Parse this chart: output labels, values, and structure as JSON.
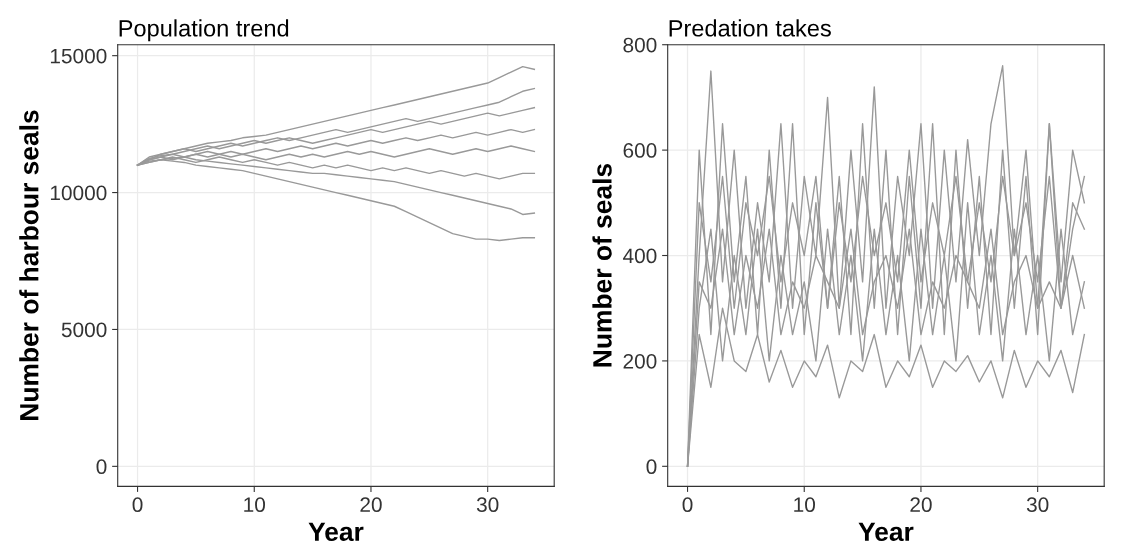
{
  "chart_data": [
    {
      "type": "line",
      "title": "Population trend",
      "xlabel": "Year",
      "ylabel": "Number of harbour seals",
      "xlim": [
        -1.7,
        35.7
      ],
      "ylim": [
        -730,
        15400
      ],
      "xticks": [
        0,
        10,
        20,
        30
      ],
      "yticks": [
        0,
        5000,
        10000,
        15000
      ],
      "grid": true,
      "x": [
        0,
        1,
        2,
        3,
        4,
        5,
        6,
        7,
        8,
        9,
        10,
        11,
        12,
        13,
        14,
        15,
        16,
        17,
        18,
        19,
        20,
        21,
        22,
        23,
        24,
        25,
        26,
        27,
        28,
        29,
        30,
        31,
        32,
        33,
        34
      ],
      "series": [
        {
          "color": "#999999",
          "values": [
            11000,
            11200,
            11400,
            11500,
            11600,
            11700,
            11800,
            11850,
            11900,
            12000,
            12050,
            12100,
            12200,
            12300,
            12400,
            12500,
            12600,
            12700,
            12800,
            12900,
            13000,
            13100,
            13200,
            13300,
            13400,
            13500,
            13600,
            13700,
            13800,
            13900,
            14000,
            14200,
            14400,
            14600,
            14500
          ]
        },
        {
          "color": "#999999",
          "values": [
            11000,
            11100,
            11200,
            11150,
            11100,
            11000,
            10950,
            10900,
            10850,
            10800,
            10700,
            10600,
            10500,
            10400,
            10300,
            10200,
            10100,
            10000,
            9900,
            9800,
            9700,
            9600,
            9500,
            9300,
            9100,
            8900,
            8700,
            8500,
            8400,
            8300,
            8300,
            8250,
            8300,
            8350,
            8350
          ]
        },
        {
          "color": "#999999",
          "values": [
            11000,
            11150,
            11200,
            11250,
            11300,
            11200,
            11150,
            11100,
            11050,
            11000,
            10950,
            10900,
            10850,
            10800,
            10750,
            10700,
            10700,
            10650,
            10600,
            10550,
            10500,
            10450,
            10400,
            10300,
            10200,
            10100,
            10000,
            9900,
            9800,
            9700,
            9600,
            9500,
            9400,
            9200,
            9250
          ]
        },
        {
          "color": "#999999",
          "values": [
            11000,
            11300,
            11400,
            11500,
            11600,
            11500,
            11600,
            11700,
            11800,
            11700,
            11800,
            11900,
            12000,
            11900,
            12000,
            12100,
            12200,
            12300,
            12200,
            12300,
            12400,
            12500,
            12600,
            12700,
            12600,
            12700,
            12800,
            12900,
            13000,
            13100,
            13200,
            13300,
            13500,
            13700,
            13800
          ]
        },
        {
          "color": "#999999",
          "values": [
            11000,
            11200,
            11300,
            11200,
            11300,
            11400,
            11300,
            11400,
            11500,
            11400,
            11500,
            11600,
            11500,
            11600,
            11700,
            11600,
            11700,
            11800,
            11700,
            11800,
            11900,
            11800,
            11900,
            12000,
            11900,
            12000,
            12100,
            12000,
            12100,
            12200,
            12100,
            12200,
            12300,
            12200,
            12300
          ]
        },
        {
          "color": "#999999",
          "values": [
            11000,
            11100,
            11200,
            11300,
            11200,
            11100,
            11200,
            11300,
            11200,
            11100,
            11200,
            11100,
            11000,
            11100,
            11000,
            10900,
            11000,
            10900,
            11000,
            10900,
            10800,
            10900,
            10800,
            10900,
            10800,
            10700,
            10800,
            10700,
            10600,
            10700,
            10600,
            10500,
            10600,
            10700,
            10700
          ]
        },
        {
          "color": "#999999",
          "values": [
            11000,
            11250,
            11350,
            11400,
            11500,
            11600,
            11700,
            11600,
            11700,
            11800,
            11900,
            11800,
            11900,
            12000,
            11900,
            11800,
            11900,
            12000,
            12100,
            12200,
            12300,
            12200,
            12300,
            12400,
            12500,
            12600,
            12500,
            12600,
            12700,
            12800,
            12900,
            12800,
            12900,
            13000,
            13100
          ]
        },
        {
          "color": "#999999",
          "values": [
            11000,
            11200,
            11300,
            11400,
            11300,
            11400,
            11500,
            11400,
            11300,
            11400,
            11300,
            11200,
            11300,
            11400,
            11300,
            11400,
            11300,
            11400,
            11500,
            11400,
            11500,
            11400,
            11300,
            11400,
            11500,
            11600,
            11500,
            11400,
            11500,
            11600,
            11500,
            11600,
            11700,
            11600,
            11500
          ]
        }
      ]
    },
    {
      "type": "line",
      "title": "Predation takes",
      "xlabel": "Year",
      "ylabel": "Number of seals",
      "xlim": [
        -1.7,
        35.7
      ],
      "ylim": [
        -38,
        800
      ],
      "xticks": [
        0,
        10,
        20,
        30
      ],
      "yticks": [
        0,
        200,
        400,
        600,
        800
      ],
      "grid": true,
      "x": [
        0,
        1,
        2,
        3,
        4,
        5,
        6,
        7,
        8,
        9,
        10,
        11,
        12,
        13,
        14,
        15,
        16,
        17,
        18,
        19,
        20,
        21,
        22,
        23,
        24,
        25,
        26,
        27,
        28,
        29,
        30,
        31,
        32,
        33,
        34
      ],
      "series": [
        {
          "color": "#999999",
          "values": [
            0,
            400,
            750,
            350,
            600,
            300,
            500,
            350,
            650,
            300,
            550,
            400,
            700,
            300,
            600,
            350,
            720,
            300,
            550,
            400,
            650,
            300,
            600,
            350,
            620,
            400,
            650,
            760,
            400,
            600,
            300,
            650,
            350,
            600,
            500
          ]
        },
        {
          "color": "#999999",
          "values": [
            0,
            250,
            150,
            300,
            200,
            180,
            250,
            160,
            220,
            150,
            200,
            170,
            230,
            130,
            200,
            180,
            250,
            150,
            200,
            170,
            230,
            150,
            200,
            180,
            210,
            160,
            200,
            130,
            220,
            150,
            200,
            170,
            220,
            140,
            250
          ]
        },
        {
          "color": "#999999",
          "values": [
            0,
            350,
            300,
            450,
            250,
            400,
            300,
            450,
            250,
            350,
            300,
            400,
            350,
            300,
            450,
            250,
            350,
            400,
            300,
            450,
            250,
            350,
            300,
            400,
            350,
            300,
            450,
            250,
            350,
            400,
            300,
            350,
            300,
            400,
            300
          ]
        },
        {
          "color": "#999999",
          "values": [
            0,
            500,
            350,
            550,
            300,
            500,
            400,
            550,
            350,
            500,
            400,
            550,
            300,
            500,
            350,
            550,
            400,
            500,
            350,
            600,
            350,
            500,
            400,
            550,
            350,
            500,
            350,
            550,
            400,
            500,
            350,
            550,
            300,
            500,
            450
          ]
        },
        {
          "color": "#999999",
          "values": [
            0,
            300,
            450,
            200,
            400,
            250,
            450,
            200,
            400,
            250,
            350,
            200,
            450,
            250,
            400,
            200,
            450,
            250,
            400,
            200,
            450,
            250,
            400,
            200,
            500,
            250,
            400,
            200,
            450,
            250,
            400,
            200,
            450,
            250,
            350
          ]
        },
        {
          "color": "#999999",
          "values": [
            0,
            600,
            250,
            650,
            350,
            550,
            250,
            600,
            300,
            650,
            250,
            500,
            300,
            550,
            250,
            650,
            300,
            600,
            250,
            550,
            300,
            650,
            250,
            600,
            300,
            550,
            250,
            600,
            300,
            550,
            250,
            650,
            300,
            450,
            550
          ]
        }
      ]
    }
  ]
}
